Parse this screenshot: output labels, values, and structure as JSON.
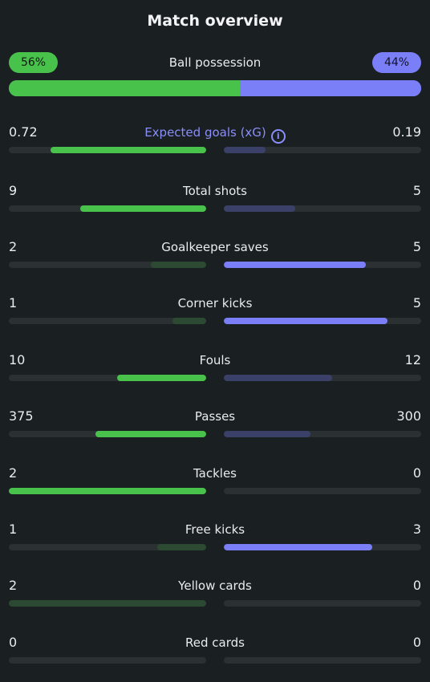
{
  "title": "Match overview",
  "possession": {
    "label": "Ball possession",
    "home_label": "56%",
    "away_label": "44%",
    "home_fraction": 0.56,
    "away_fraction": 0.44,
    "home_color": "#49c24b",
    "away_color": "#7a7ff7"
  },
  "stats": [
    {
      "label": "Expected goals (xG)",
      "home": "0.72",
      "away": "0.19",
      "home_fraction": 0.79,
      "away_fraction": 0.21,
      "home_strong": true,
      "away_strong": false,
      "highlight": true,
      "icon": "info-icon"
    },
    {
      "label": "Total shots",
      "home": "9",
      "away": "5",
      "home_fraction": 0.64,
      "away_fraction": 0.36,
      "home_strong": true,
      "away_strong": false
    },
    {
      "label": "Goalkeeper saves",
      "home": "2",
      "away": "5",
      "home_fraction": 0.28,
      "away_fraction": 0.72,
      "home_strong": false,
      "away_strong": true
    },
    {
      "label": "Corner kicks",
      "home": "1",
      "away": "5",
      "home_fraction": 0.17,
      "away_fraction": 0.83,
      "home_strong": false,
      "away_strong": true
    },
    {
      "label": "Fouls",
      "home": "10",
      "away": "12",
      "home_fraction": 0.45,
      "away_fraction": 0.55,
      "home_strong": true,
      "away_strong": false
    },
    {
      "label": "Passes",
      "home": "375",
      "away": "300",
      "home_fraction": 0.56,
      "away_fraction": 0.44,
      "home_strong": true,
      "away_strong": false
    },
    {
      "label": "Tackles",
      "home": "2",
      "away": "0",
      "home_fraction": 1.0,
      "away_fraction": 0.0,
      "home_strong": true,
      "away_strong": false
    },
    {
      "label": "Free kicks",
      "home": "1",
      "away": "3",
      "home_fraction": 0.25,
      "away_fraction": 0.75,
      "home_strong": false,
      "away_strong": true
    },
    {
      "label": "Yellow cards",
      "home": "2",
      "away": "0",
      "home_fraction": 1.0,
      "away_fraction": 0.0,
      "home_strong": false,
      "away_strong": false
    },
    {
      "label": "Red cards",
      "home": "0",
      "away": "0",
      "home_fraction": 0.0,
      "away_fraction": 0.0,
      "home_strong": false,
      "away_strong": false
    }
  ]
}
